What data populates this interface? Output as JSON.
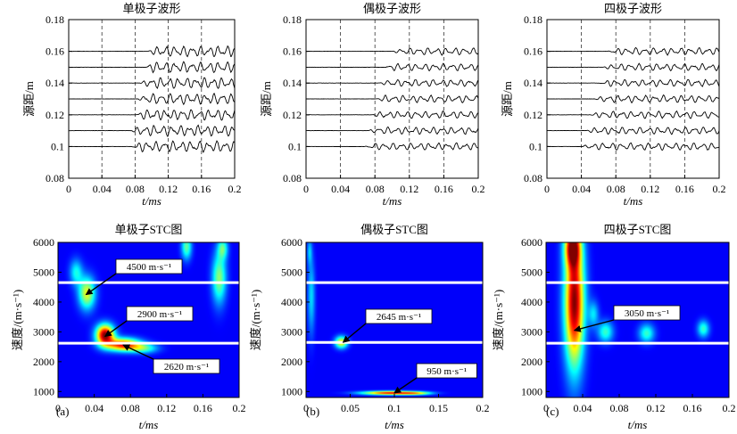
{
  "chart_data": [
    {
      "type": "line",
      "title": "单极子波形",
      "xlabel": "t/ms",
      "ylabel": "源距/m",
      "xlim": [
        0,
        0.2
      ],
      "ylim": [
        0.08,
        0.18
      ],
      "x_ticks": [
        "0",
        "0.04",
        "0.08",
        "0.12",
        "0.16",
        "0.2"
      ],
      "y_ticks": [
        "0.08",
        "0.1",
        "0.12",
        "0.14",
        "0.16",
        "0.18"
      ],
      "dashed_lines_x": [
        0.04,
        0.08,
        0.12,
        0.16
      ],
      "trace_offsets": [
        0.1,
        0.11,
        0.12,
        0.13,
        0.14,
        0.15,
        0.16
      ],
      "wave_onset_ms": [
        0.075,
        0.075,
        0.08,
        0.083,
        0.086,
        0.09,
        0.095
      ],
      "grid": false
    },
    {
      "type": "line",
      "title": "偶极子波形",
      "xlabel": "t/ms",
      "ylabel": "源距/m",
      "xlim": [
        0,
        0.2
      ],
      "ylim": [
        0.08,
        0.18
      ],
      "x_ticks": [
        "0",
        "0.04",
        "0.08",
        "0.12",
        "0.16",
        "0.2"
      ],
      "y_ticks": [
        "0.08",
        "0.1",
        "0.12",
        "0.14",
        "0.16",
        "0.18"
      ],
      "dashed_lines_x": [
        0.04,
        0.08,
        0.12,
        0.16
      ],
      "trace_offsets": [
        0.1,
        0.11,
        0.12,
        0.13,
        0.14,
        0.15,
        0.16
      ],
      "wave_onset_ms": [
        0.068,
        0.072,
        0.076,
        0.08,
        0.085,
        0.09,
        0.1
      ],
      "grid": false
    },
    {
      "type": "line",
      "title": "四极子波形",
      "xlabel": "t/ms",
      "ylabel": "源距/m",
      "xlim": [
        0,
        0.2
      ],
      "ylim": [
        0.08,
        0.18
      ],
      "x_ticks": [
        "0",
        "0.04",
        "0.08",
        "0.12",
        "0.16",
        "0.2"
      ],
      "y_ticks": [
        "0.08",
        "0.1",
        "0.12",
        "0.14",
        "0.16",
        "0.18"
      ],
      "dashed_lines_x": [
        0.04,
        0.08,
        0.12,
        0.16
      ],
      "trace_offsets": [
        0.1,
        0.11,
        0.12,
        0.13,
        0.14,
        0.15,
        0.16
      ],
      "wave_onset_ms": [
        0.04,
        0.045,
        0.05,
        0.055,
        0.06,
        0.065,
        0.07
      ],
      "grid": false
    },
    {
      "type": "heatmap",
      "title": "单极子STC图",
      "panel_label": "(a)",
      "xlabel": "t/ms",
      "ylabel": "速度/(m·s⁻¹)",
      "xlim": [
        0,
        0.2
      ],
      "ylim": [
        800,
        6000
      ],
      "x_ticks": [
        "0",
        "0.04",
        "0.08",
        "0.12",
        "0.16",
        "0.2"
      ],
      "y_ticks": [
        "1000",
        "2000",
        "3000",
        "4000",
        "5000",
        "6000"
      ],
      "white_lines_y": [
        4650,
        2620
      ],
      "blobs": [
        {
          "t": 0.052,
          "v": 2900,
          "st": 0.007,
          "sv": 240,
          "a": 1.0
        },
        {
          "t": 0.072,
          "v": 2570,
          "st": 0.013,
          "sv": 150,
          "a": 0.85
        },
        {
          "t": 0.095,
          "v": 2450,
          "st": 0.011,
          "sv": 120,
          "a": 0.35
        },
        {
          "t": 0.032,
          "v": 4300,
          "st": 0.0065,
          "sv": 380,
          "a": 0.55
        },
        {
          "t": 0.02,
          "v": 5000,
          "st": 0.005,
          "sv": 300,
          "a": 0.3
        },
        {
          "t": 0.142,
          "v": 5850,
          "st": 0.004,
          "sv": 300,
          "a": 0.4
        },
        {
          "t": 0.178,
          "v": 4800,
          "st": 0.0055,
          "sv": 600,
          "a": 0.45
        },
        {
          "t": 0.182,
          "v": 5800,
          "st": 0.004,
          "sv": 250,
          "a": 0.35
        }
      ],
      "annotations": [
        {
          "text": "4500 m·s⁻¹",
          "t": 0.031,
          "v": 4250
        },
        {
          "text": "2900 m·s⁻¹",
          "t": 0.052,
          "v": 2850
        },
        {
          "text": "2620 m·s⁻¹",
          "t": 0.072,
          "v": 2560
        }
      ]
    },
    {
      "type": "heatmap",
      "title": "偶极子STC图",
      "panel_label": "(b)",
      "xlabel": "t/ms",
      "ylabel": "速度/(m·s⁻¹)",
      "xlim": [
        0,
        0.2
      ],
      "ylim": [
        800,
        6000
      ],
      "x_ticks": [
        "0",
        "0.05",
        "0.1",
        "0.15",
        "0.2"
      ],
      "y_ticks": [
        "1000",
        "2000",
        "3000",
        "4000",
        "5000",
        "6000"
      ],
      "white_lines_y": [
        4650,
        2645
      ],
      "blobs": [
        {
          "t": 0.04,
          "v": 2650,
          "st": 0.005,
          "sv": 140,
          "a": 0.6
        },
        {
          "t": 0.095,
          "v": 950,
          "st": 0.022,
          "sv": 45,
          "a": 0.85
        },
        {
          "t": 0.125,
          "v": 940,
          "st": 0.012,
          "sv": 40,
          "a": 0.4
        },
        {
          "t": 0.006,
          "v": 4200,
          "st": 0.003,
          "sv": 900,
          "a": 0.25
        },
        {
          "t": 0.004,
          "v": 5700,
          "st": 0.002,
          "sv": 300,
          "a": 0.2
        }
      ],
      "annotations": [
        {
          "text": "2645 m·s⁻¹",
          "t": 0.042,
          "v": 2650
        },
        {
          "text": "950 m·s⁻¹",
          "t": 0.1,
          "v": 950
        }
      ]
    },
    {
      "type": "heatmap",
      "title": "四极子STC图",
      "panel_label": "(c)",
      "xlabel": "t/ms",
      "ylabel": "速度/(m·s⁻¹)",
      "xlim": [
        0,
        0.2
      ],
      "ylim": [
        800,
        6000
      ],
      "x_ticks": [
        "0",
        "0.04",
        "0.08",
        "0.12",
        "0.16",
        "0.2"
      ],
      "y_ticks": [
        "1000",
        "2000",
        "3000",
        "4000",
        "5000",
        "6000"
      ],
      "white_lines_y": [
        4650,
        2620
      ],
      "blobs": [
        {
          "t": 0.031,
          "v": 4000,
          "st": 0.0075,
          "sv": 1500,
          "a": 1.0
        },
        {
          "t": 0.029,
          "v": 5850,
          "st": 0.006,
          "sv": 450,
          "a": 0.75
        },
        {
          "t": 0.065,
          "v": 3000,
          "st": 0.006,
          "sv": 250,
          "a": 0.35
        },
        {
          "t": 0.11,
          "v": 2950,
          "st": 0.006,
          "sv": 220,
          "a": 0.35
        },
        {
          "t": 0.172,
          "v": 3100,
          "st": 0.0045,
          "sv": 200,
          "a": 0.35
        },
        {
          "t": 0.052,
          "v": 3600,
          "st": 0.004,
          "sv": 300,
          "a": 0.25
        }
      ],
      "annotations": [
        {
          "text": "3050 m·s⁻¹",
          "t": 0.031,
          "v": 3050
        }
      ]
    }
  ]
}
